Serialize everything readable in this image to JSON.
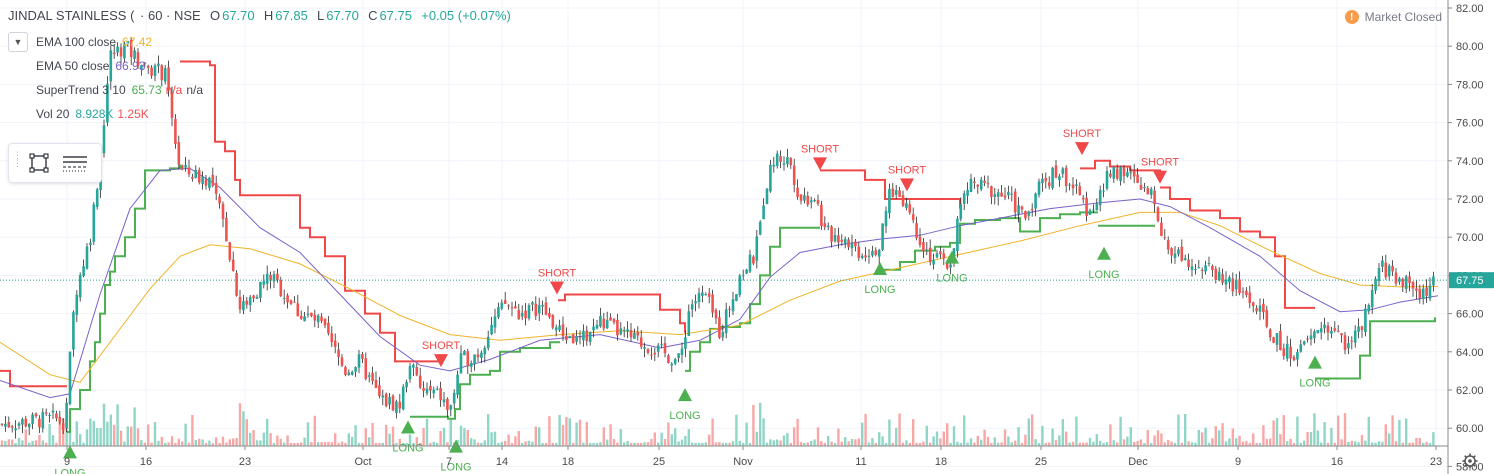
{
  "header": {
    "symbol": "JINDAL STAINLESS (",
    "interval": "· 60 · NSE",
    "open_label": "O",
    "open": "67.70",
    "high_label": "H",
    "high": "67.85",
    "low_label": "L",
    "low": "67.70",
    "close_label": "C",
    "close": "67.75",
    "change": "+0.05 (+0.07%)"
  },
  "status": {
    "icon_text": "!",
    "label": "Market Closed"
  },
  "indicators": [
    {
      "name": "EMA 100 close",
      "value": "67.42",
      "color": "#f0b429"
    },
    {
      "name": "EMA 50 close",
      "value": "66.93",
      "color": "#7b61c8"
    },
    {
      "name": "SuperTrend 3 10",
      "value": "65.73",
      "extra1": "n/a",
      "extra2": "n/a",
      "color": "#4caf50"
    },
    {
      "name": "Vol 20",
      "value": "8.928K",
      "extra1": "1.25K",
      "color": "#26a69a",
      "color2": "#ef5350"
    }
  ],
  "colors": {
    "up": "#26a69a",
    "down": "#ef5350",
    "st_up": "#4caf50",
    "st_down": "#f04848",
    "ema100": "#f0b429",
    "ema50": "#7b61c8",
    "grid": "#f0f3fa"
  },
  "chart_data": {
    "type": "candlestick",
    "y_ticks": [
      "82.00",
      "80.00",
      "78.00",
      "76.00",
      "74.00",
      "72.00",
      "70.00",
      "68.00",
      "66.00",
      "64.00",
      "62.00",
      "60.00",
      "58.00"
    ],
    "ylim": [
      57,
      82
    ],
    "x_ticks": [
      "9",
      "16",
      "23",
      "Oct",
      "7",
      "14",
      "18",
      "25",
      "Nov",
      "11",
      "18",
      "25",
      "Dec",
      "9",
      "16",
      "23"
    ],
    "last_price": "67.75",
    "close_path": [
      [
        0,
        60.2
      ],
      [
        55,
        60.5
      ],
      [
        65,
        60.3
      ],
      [
        75,
        67
      ],
      [
        90,
        70
      ],
      [
        100,
        74
      ],
      [
        110,
        79.5
      ],
      [
        125,
        80
      ],
      [
        140,
        79.2
      ],
      [
        165,
        78.5
      ],
      [
        180,
        73.5
      ],
      [
        210,
        73
      ],
      [
        225,
        70.5
      ],
      [
        240,
        66.3
      ],
      [
        270,
        68
      ],
      [
        300,
        66
      ],
      [
        320,
        65.5
      ],
      [
        345,
        63
      ],
      [
        360,
        63.5
      ],
      [
        380,
        61.5
      ],
      [
        400,
        61.2
      ],
      [
        410,
        63.5
      ],
      [
        420,
        62
      ],
      [
        440,
        61.7
      ],
      [
        450,
        60.8
      ],
      [
        460,
        63.5
      ],
      [
        480,
        64
      ],
      [
        490,
        65.3
      ],
      [
        505,
        66.5
      ],
      [
        520,
        66
      ],
      [
        540,
        66.4
      ],
      [
        560,
        65
      ],
      [
        580,
        64.5
      ],
      [
        600,
        65.6
      ],
      [
        620,
        65
      ],
      [
        640,
        64.5
      ],
      [
        660,
        64
      ],
      [
        680,
        63.5
      ],
      [
        690,
        66.5
      ],
      [
        705,
        67
      ],
      [
        720,
        65
      ],
      [
        740,
        68
      ],
      [
        755,
        69
      ],
      [
        765,
        72.5
      ],
      [
        775,
        74.2
      ],
      [
        790,
        74
      ],
      [
        800,
        72
      ],
      [
        815,
        72.2
      ],
      [
        825,
        70.2
      ],
      [
        845,
        70
      ],
      [
        860,
        69.2
      ],
      [
        880,
        69.5
      ],
      [
        890,
        72.5
      ],
      [
        905,
        72
      ],
      [
        915,
        70.5
      ],
      [
        930,
        69
      ],
      [
        950,
        68.5
      ],
      [
        960,
        71.5
      ],
      [
        970,
        72.8
      ],
      [
        990,
        72.5
      ],
      [
        1010,
        72
      ],
      [
        1025,
        71
      ],
      [
        1040,
        72.8
      ],
      [
        1060,
        73.5
      ],
      [
        1075,
        72.5
      ],
      [
        1085,
        71.5
      ],
      [
        1100,
        72
      ],
      [
        1110,
        73.5
      ],
      [
        1125,
        73.5
      ],
      [
        1140,
        72.5
      ],
      [
        1155,
        72
      ],
      [
        1165,
        69.5
      ],
      [
        1185,
        69
      ],
      [
        1200,
        68.5
      ],
      [
        1220,
        68
      ],
      [
        1245,
        67
      ],
      [
        1260,
        66
      ],
      [
        1270,
        65
      ],
      [
        1285,
        64
      ],
      [
        1300,
        64
      ],
      [
        1315,
        65
      ],
      [
        1325,
        65.4
      ],
      [
        1345,
        64.5
      ],
      [
        1360,
        65
      ],
      [
        1370,
        66.5
      ],
      [
        1380,
        68.5
      ],
      [
        1395,
        68
      ],
      [
        1410,
        67.5
      ],
      [
        1420,
        67
      ],
      [
        1438,
        67.75
      ]
    ],
    "ema50_path": [
      [
        0,
        62.5
      ],
      [
        50,
        61.6
      ],
      [
        70,
        61.8
      ],
      [
        100,
        67
      ],
      [
        130,
        71.5
      ],
      [
        160,
        73.5
      ],
      [
        190,
        73.6
      ],
      [
        220,
        72.6
      ],
      [
        260,
        70.5
      ],
      [
        300,
        69.2
      ],
      [
        340,
        67
      ],
      [
        380,
        64.8
      ],
      [
        420,
        63.3
      ],
      [
        450,
        63
      ],
      [
        490,
        63.6
      ],
      [
        540,
        64.6
      ],
      [
        600,
        64.9
      ],
      [
        660,
        64.2
      ],
      [
        700,
        64.6
      ],
      [
        740,
        65.7
      ],
      [
        770,
        67.9
      ],
      [
        800,
        69.2
      ],
      [
        840,
        69.6
      ],
      [
        880,
        69.9
      ],
      [
        920,
        70.1
      ],
      [
        960,
        70.6
      ],
      [
        1000,
        71
      ],
      [
        1050,
        71.5
      ],
      [
        1100,
        71.8
      ],
      [
        1140,
        72
      ],
      [
        1170,
        71.6
      ],
      [
        1210,
        70.5
      ],
      [
        1260,
        69
      ],
      [
        1300,
        67.2
      ],
      [
        1340,
        66.1
      ],
      [
        1370,
        66.2
      ],
      [
        1400,
        66.6
      ],
      [
        1438,
        66.93
      ]
    ],
    "ema100_path": [
      [
        0,
        64.5
      ],
      [
        50,
        62.8
      ],
      [
        80,
        62.4
      ],
      [
        110,
        64.5
      ],
      [
        150,
        67.3
      ],
      [
        180,
        69
      ],
      [
        210,
        69.6
      ],
      [
        250,
        69.4
      ],
      [
        300,
        68.6
      ],
      [
        350,
        67.3
      ],
      [
        400,
        65.9
      ],
      [
        450,
        64.9
      ],
      [
        500,
        64.6
      ],
      [
        560,
        64.9
      ],
      [
        620,
        65.1
      ],
      [
        680,
        64.9
      ],
      [
        740,
        65.4
      ],
      [
        790,
        66.7
      ],
      [
        840,
        67.7
      ],
      [
        900,
        68.4
      ],
      [
        960,
        69.1
      ],
      [
        1020,
        69.8
      ],
      [
        1080,
        70.6
      ],
      [
        1140,
        71.3
      ],
      [
        1180,
        71.3
      ],
      [
        1220,
        70.6
      ],
      [
        1270,
        69.3
      ],
      [
        1320,
        68.1
      ],
      [
        1360,
        67.5
      ],
      [
        1400,
        67.4
      ],
      [
        1438,
        67.42
      ]
    ],
    "supertrend_segments": [
      {
        "trend": "down",
        "points": [
          [
            0,
            63
          ],
          [
            10,
            62.2
          ],
          [
            67,
            62.2
          ]
        ]
      },
      {
        "trend": "up",
        "points": [
          [
            67,
            59.8
          ],
          [
            70,
            61
          ],
          [
            80,
            62
          ],
          [
            90,
            63.5
          ],
          [
            95,
            64.5
          ],
          [
            100,
            66
          ],
          [
            105,
            67.5
          ],
          [
            110,
            68.2
          ],
          [
            115,
            69
          ],
          [
            125,
            70
          ],
          [
            135,
            71.5
          ],
          [
            145,
            73.5
          ],
          [
            170,
            73.6
          ],
          [
            180,
            73.8
          ]
        ]
      },
      {
        "trend": "down",
        "points": [
          [
            180,
            79.2
          ],
          [
            210,
            79
          ],
          [
            215,
            75
          ],
          [
            225,
            74.5
          ],
          [
            235,
            73
          ],
          [
            240,
            72.2
          ],
          [
            290,
            72.2
          ],
          [
            300,
            70.5
          ],
          [
            310,
            70
          ],
          [
            325,
            69
          ],
          [
            345,
            67.2
          ],
          [
            365,
            66
          ],
          [
            380,
            65
          ],
          [
            395,
            63.5
          ],
          [
            410,
            63.5
          ],
          [
            430,
            63.5
          ],
          [
            442,
            63.5
          ]
        ]
      },
      {
        "trend": "up",
        "points": [
          [
            410,
            60.6
          ],
          [
            445,
            60.6
          ],
          [
            448,
            60.5
          ],
          [
            455,
            61
          ],
          [
            460,
            62.3
          ],
          [
            470,
            62.8
          ],
          [
            490,
            63
          ],
          [
            500,
            64
          ],
          [
            520,
            64.2
          ],
          [
            550,
            64.5
          ],
          [
            560,
            64.5
          ]
        ]
      },
      {
        "trend": "down",
        "points": [
          [
            558,
            66.7
          ],
          [
            565,
            67
          ],
          [
            640,
            67
          ],
          [
            660,
            66.2
          ],
          [
            680,
            65.5
          ],
          [
            685,
            65
          ]
        ]
      },
      {
        "trend": "up",
        "points": [
          [
            685,
            63
          ],
          [
            690,
            64
          ],
          [
            700,
            64.5
          ],
          [
            710,
            65.2
          ],
          [
            720,
            65.3
          ],
          [
            740,
            65.5
          ],
          [
            750,
            66.5
          ],
          [
            760,
            68
          ],
          [
            770,
            69.5
          ],
          [
            780,
            70.5
          ],
          [
            820,
            70.5
          ]
        ]
      },
      {
        "trend": "down",
        "points": [
          [
            820,
            73.5
          ],
          [
            860,
            73.5
          ],
          [
            865,
            73
          ],
          [
            885,
            72
          ],
          [
            905,
            72
          ],
          [
            955,
            72
          ],
          [
            960,
            71.5
          ]
        ]
      },
      {
        "trend": "up",
        "points": [
          [
            880,
            68.3
          ],
          [
            900,
            68.7
          ],
          [
            915,
            69.3
          ],
          [
            935,
            69.5
          ],
          [
            950,
            69.7
          ],
          [
            960,
            70.7
          ],
          [
            975,
            70.9
          ],
          [
            1000,
            71
          ],
          [
            1020,
            70.3
          ],
          [
            1040,
            71
          ],
          [
            1060,
            71.2
          ],
          [
            1080,
            71.3
          ],
          [
            1098,
            71.3
          ]
        ]
      },
      {
        "trend": "down",
        "points": [
          [
            1080,
            73.6
          ],
          [
            1095,
            74
          ],
          [
            1110,
            73.7
          ],
          [
            1130,
            73.5
          ],
          [
            1150,
            73.5
          ],
          [
            1160,
            73
          ]
        ]
      },
      {
        "trend": "up",
        "points": [
          [
            1098,
            70.6
          ],
          [
            1130,
            70.6
          ],
          [
            1155,
            70.6
          ]
        ]
      },
      {
        "trend": "down",
        "points": [
          [
            1160,
            72.6
          ],
          [
            1170,
            72
          ],
          [
            1190,
            71.4
          ],
          [
            1220,
            71
          ],
          [
            1240,
            70.3
          ],
          [
            1260,
            70
          ],
          [
            1275,
            69
          ],
          [
            1285,
            66.3
          ],
          [
            1300,
            66.3
          ],
          [
            1315,
            66.3
          ]
        ]
      },
      {
        "trend": "up",
        "points": [
          [
            1315,
            62.6
          ],
          [
            1355,
            62.6
          ],
          [
            1360,
            63.8
          ],
          [
            1370,
            65.6
          ],
          [
            1400,
            65.6
          ],
          [
            1435,
            65.8
          ]
        ]
      }
    ],
    "signals": [
      {
        "type": "long",
        "label": "LONG",
        "x": 70,
        "price": 59.1
      },
      {
        "type": "long",
        "label": "LONG",
        "x": 408,
        "price": 60.4
      },
      {
        "type": "short",
        "label": "SHORT",
        "x": 441,
        "price": 63.2
      },
      {
        "type": "long",
        "label": "LONG",
        "x": 456,
        "price": 59.4
      },
      {
        "type": "short",
        "label": "SHORT",
        "x": 557,
        "price": 67.0
      },
      {
        "type": "long",
        "label": "LONG",
        "x": 685,
        "price": 62.1
      },
      {
        "type": "short",
        "label": "SHORT",
        "x": 820,
        "price": 73.5
      },
      {
        "type": "long",
        "label": "LONG",
        "x": 880,
        "price": 68.7
      },
      {
        "type": "short",
        "label": "SHORT",
        "x": 907,
        "price": 72.4
      },
      {
        "type": "long",
        "label": "LONG",
        "x": 952,
        "price": 69.3
      },
      {
        "type": "short",
        "label": "SHORT",
        "x": 1082,
        "price": 74.3
      },
      {
        "type": "long",
        "label": "LONG",
        "x": 1104,
        "price": 69.5
      },
      {
        "type": "short",
        "label": "SHORT",
        "x": 1160,
        "price": 72.8
      },
      {
        "type": "long",
        "label": "LONG",
        "x": 1315,
        "price": 63.8
      }
    ]
  }
}
